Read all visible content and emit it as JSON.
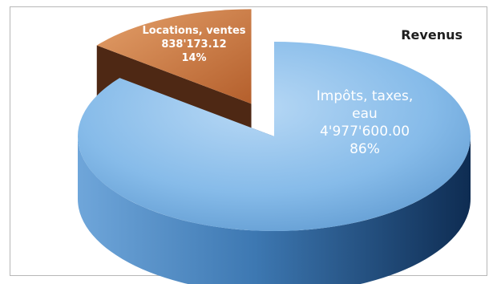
{
  "chart_data": {
    "type": "pie",
    "title": "Revenus",
    "slices": [
      {
        "label": "Impôts, taxes, eau",
        "label_lines": [
          "Impôts, taxes,",
          "eau"
        ],
        "value_text": "4'977'600.00",
        "value": 4977600.0,
        "percent_text": "86%",
        "percent": 86,
        "color": "#7fb6e6"
      },
      {
        "label": "Locations, ventes",
        "label_lines": [
          "Locations, ventes"
        ],
        "value_text": "838'173.12",
        "value": 838173.12,
        "percent_text": "14%",
        "percent": 14,
        "color": "#c97a45",
        "exploded": true
      }
    ],
    "style": "3d-pie"
  }
}
